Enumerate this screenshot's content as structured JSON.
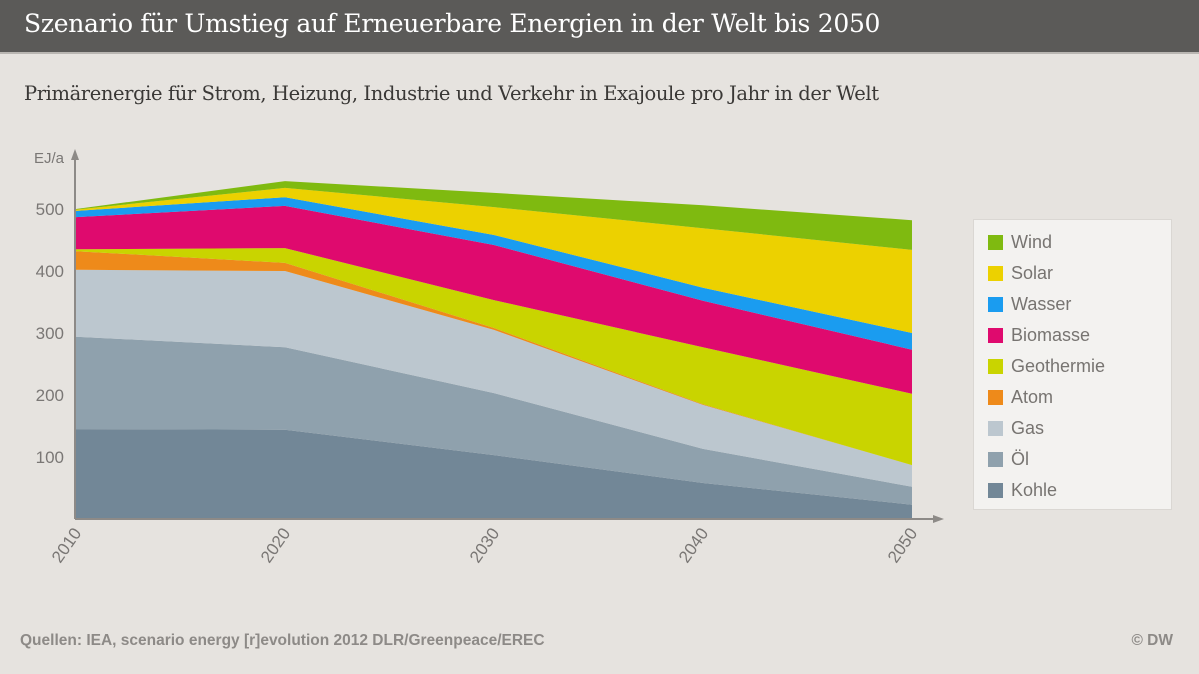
{
  "header": {
    "title": "Szenario für Umstieg auf Erneuerbare Energien in der Welt bis 2050"
  },
  "footer": {
    "source": "Quellen: IEA, scenario energy [r]evolution 2012 DLR/Greenpeace/EREC",
    "copyright": "© DW"
  },
  "chart_data": {
    "type": "area",
    "stacked": true,
    "title": "Szenario für Umstieg auf Erneuerbare Energien in der Welt bis 2050",
    "subtitle": "Primärenergie für Strom, Heizung, Industrie und Verkehr in Exajoule pro Jahr in der Welt",
    "xlabel": "",
    "ylabel": "EJ/a",
    "x": [
      "2010",
      "2020",
      "2030",
      "2040",
      "2050"
    ],
    "yticks": [
      100,
      200,
      300,
      400,
      500
    ],
    "ylim": [
      0,
      560
    ],
    "grid": false,
    "legend_position": "right",
    "series": [
      {
        "name": "Kohle",
        "color": "#728797",
        "values": [
          145,
          144,
          103,
          58,
          23
        ]
      },
      {
        "name": "Öl",
        "color": "#8fa1ad",
        "values": [
          149,
          133,
          100,
          55,
          29
        ]
      },
      {
        "name": "Gas",
        "color": "#bcc7cf",
        "values": [
          108,
          123,
          102,
          71,
          35
        ]
      },
      {
        "name": "Atom",
        "color": "#ee8a1a",
        "values": [
          30,
          13,
          3,
          1,
          0
        ]
      },
      {
        "name": "Geothermie",
        "color": "#c9d400",
        "values": [
          3,
          24,
          45,
          92,
          115
        ]
      },
      {
        "name": "Biomasse",
        "color": "#df0a6e",
        "values": [
          52,
          68,
          89,
          75,
          71
        ]
      },
      {
        "name": "Wasser",
        "color": "#1a9cf0",
        "values": [
          10,
          14,
          16,
          21,
          27
        ]
      },
      {
        "name": "Solar",
        "color": "#ecd100",
        "values": [
          2,
          15,
          45,
          96,
          134
        ]
      },
      {
        "name": "Wind",
        "color": "#7fba10",
        "values": [
          1,
          11,
          23,
          37,
          48
        ]
      }
    ],
    "legend_order": [
      "Wind",
      "Solar",
      "Wasser",
      "Biomasse",
      "Geothermie",
      "Atom",
      "Gas",
      "Öl",
      "Kohle"
    ]
  }
}
